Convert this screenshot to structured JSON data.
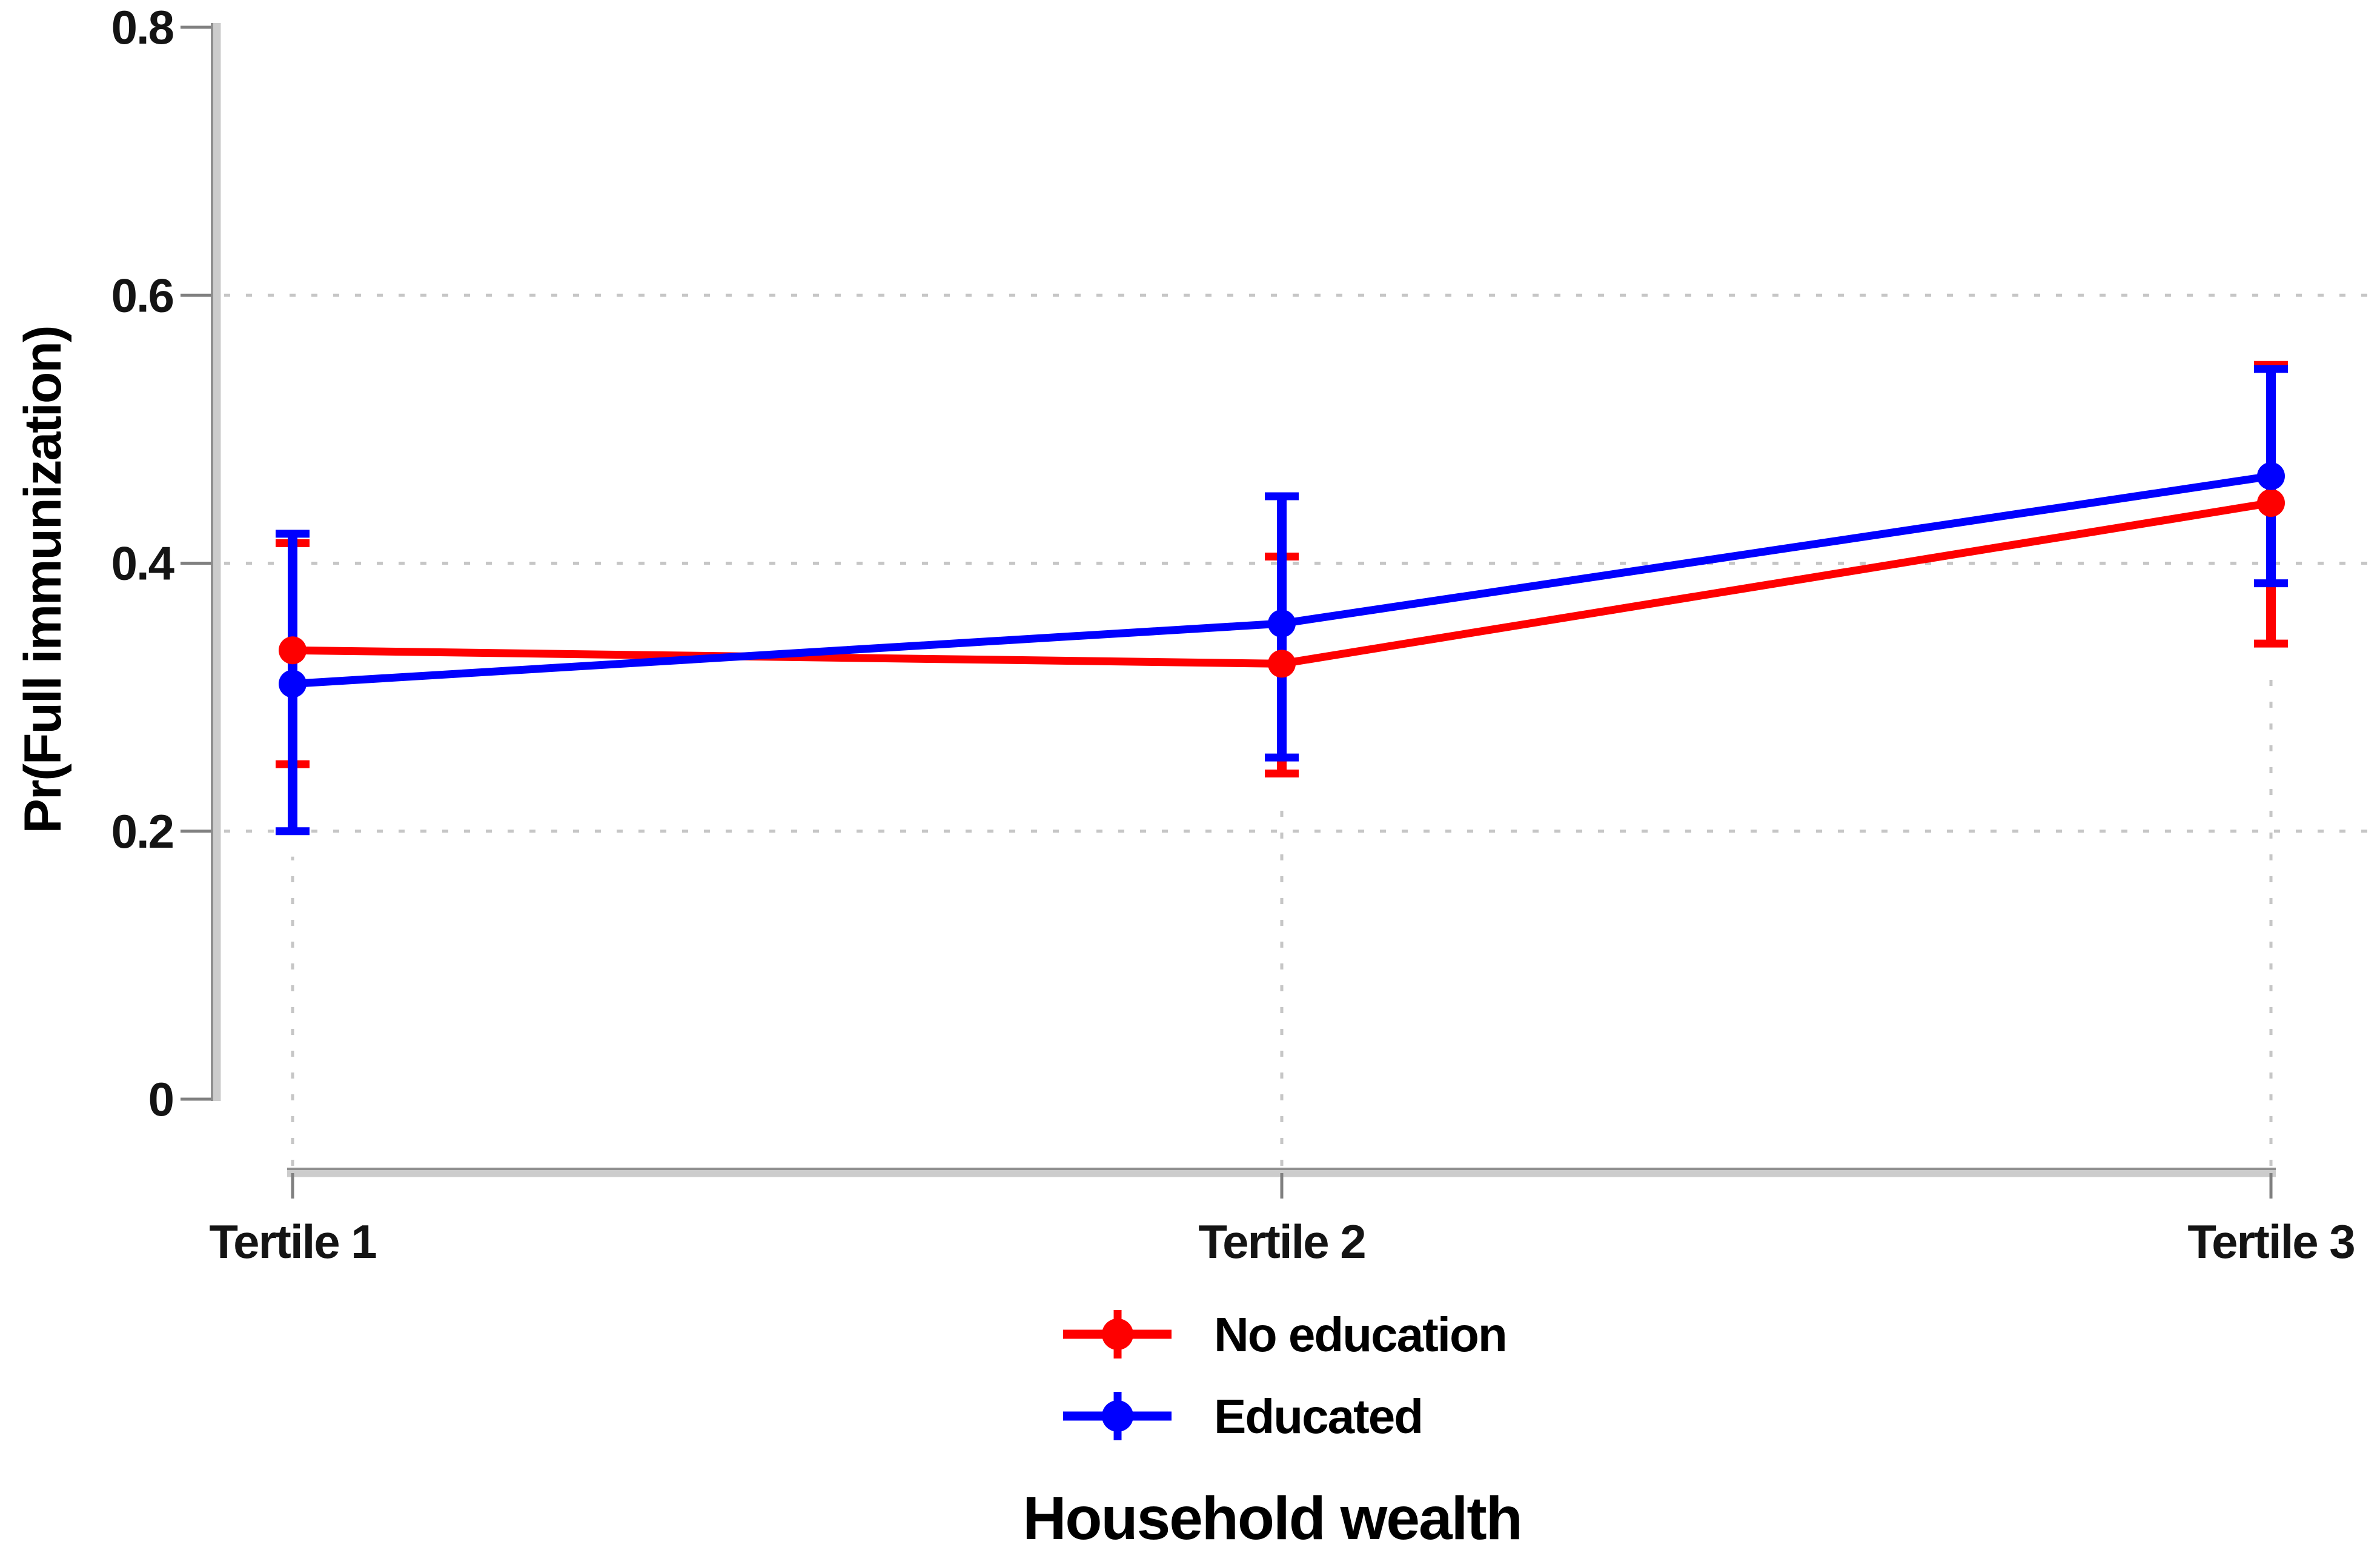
{
  "page": {
    "background": "#ffffff"
  },
  "chart_data": {
    "type": "line",
    "title": "",
    "xlabel": "Household wealth",
    "ylabel": "Pr(Full immunization)",
    "categories": [
      "Tertile 1",
      "Tertile 2",
      "Tertile 3"
    ],
    "ylim": [
      0,
      0.8
    ],
    "yticks": [
      0,
      0.2,
      0.4,
      0.6,
      0.8
    ],
    "ytick_labels": [
      "0",
      "0.2",
      "0.4",
      "0.6",
      "0.8"
    ],
    "grid": {
      "horizontal_at": [
        0.2,
        0.4,
        0.6
      ],
      "vertical_at_categories": true,
      "style": "dotted",
      "color": "#c6c6c6"
    },
    "axis_color": "#a8a8a8",
    "error_bars": true,
    "legend": {
      "position": "bottom-center",
      "entries": [
        "No education",
        "Educated"
      ]
    },
    "series": [
      {
        "name": "No education",
        "color": "#fe0000",
        "values": [
          0.335,
          0.325,
          0.445
        ],
        "ci_low": [
          0.25,
          0.243,
          0.34
        ],
        "ci_high": [
          0.415,
          0.405,
          0.548
        ]
      },
      {
        "name": "Educated",
        "color": "#0000fe",
        "values": [
          0.31,
          0.355,
          0.465
        ],
        "ci_low": [
          0.2,
          0.255,
          0.385
        ],
        "ci_high": [
          0.422,
          0.45,
          0.545
        ]
      }
    ]
  }
}
